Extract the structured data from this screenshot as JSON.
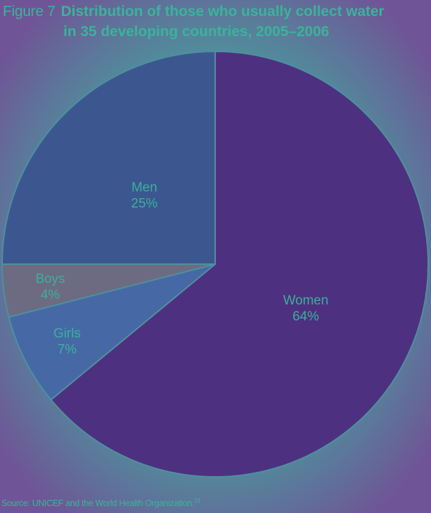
{
  "title": {
    "figure_label": "Figure 7",
    "line1": "Distribution of those who usually collect water",
    "line2": "in 35 developing countries, 2005–2006"
  },
  "source": {
    "text": "Source: UNICEF and the World Health Organization.",
    "ref": "23"
  },
  "chart_data": {
    "type": "pie",
    "slices": [
      {
        "name": "Women",
        "value": 64,
        "label": "64%",
        "color": "#4e3080"
      },
      {
        "name": "Girls",
        "value": 7,
        "label": "7%",
        "color": "#4669a6"
      },
      {
        "name": "Boys",
        "value": 4,
        "label": "4%",
        "color": "#6d6b82"
      },
      {
        "name": "Men",
        "value": 25,
        "label": "25%",
        "color": "#3c5790"
      }
    ],
    "label_color": "#3ab09a",
    "border_color": "#4f8fa0"
  }
}
